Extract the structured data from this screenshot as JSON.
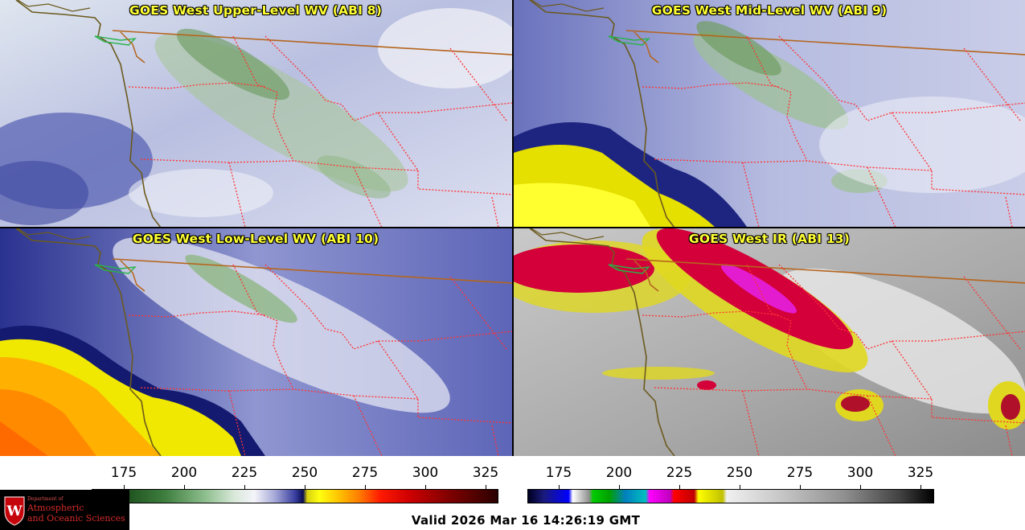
{
  "panels": [
    {
      "title": "GOES West Upper-Level WV (ABI 8)"
    },
    {
      "title": "GOES West Mid-Level WV (ABI 9)"
    },
    {
      "title": "GOES West Low-Level WV (ABI 10)"
    },
    {
      "title": "GOES West IR (ABI 13)"
    }
  ],
  "colorbar_wv": {
    "ticks": [
      "175",
      "200",
      "225",
      "250",
      "275",
      "300",
      "325"
    ]
  },
  "colorbar_ir": {
    "ticks": [
      "175",
      "200",
      "225",
      "250",
      "275",
      "300",
      "325"
    ]
  },
  "valid_time": "Valid 2026 Mar 16 14:26:19 GMT",
  "logo": {
    "line1": "Department of",
    "line2": "Atmospheric",
    "line3": "and Oceanic Sciences"
  },
  "colors": {
    "title_text": "#ffff33",
    "border": "#b5651d",
    "state_line": "#ff3333",
    "coast": "#6b5a1e"
  }
}
